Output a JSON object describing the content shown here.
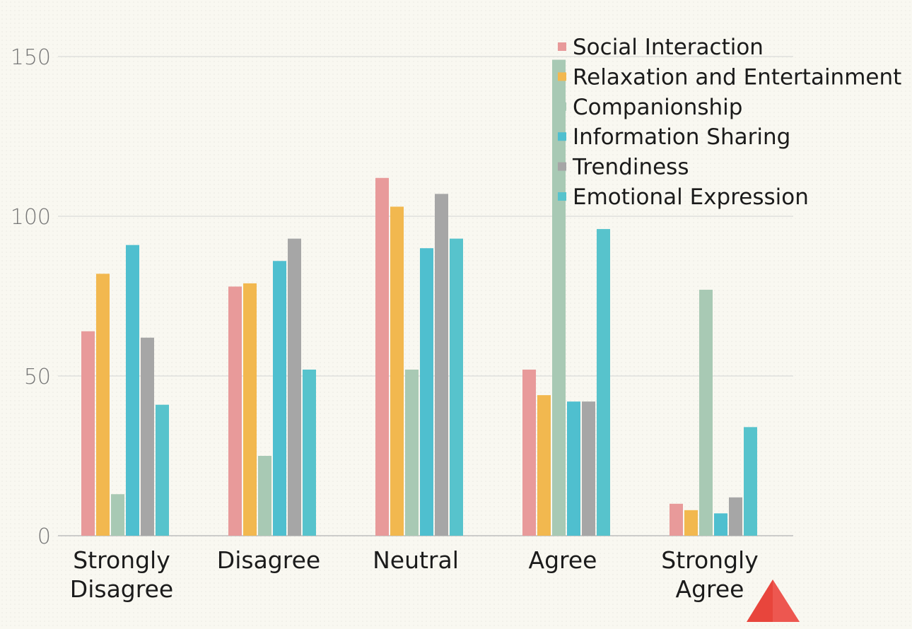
{
  "chart_data": {
    "type": "bar",
    "categories": [
      "Strongly Disagree",
      "Disagree",
      "Neutral",
      "Agree",
      "Strongly Agree"
    ],
    "category_lines": [
      [
        "Strongly",
        "Disagree"
      ],
      [
        "Disagree"
      ],
      [
        "Neutral"
      ],
      [
        "Agree"
      ],
      [
        "Strongly",
        "Agree"
      ]
    ],
    "series": [
      {
        "name": "Social Interaction",
        "color": "#e89a9a",
        "values": [
          64,
          78,
          112,
          52,
          10
        ]
      },
      {
        "name": "Relaxation and Entertainment",
        "color": "#f2b84f",
        "values": [
          82,
          79,
          103,
          44,
          8
        ]
      },
      {
        "name": "Companionship",
        "color": "#a8c9b4",
        "values": [
          13,
          25,
          52,
          149,
          77
        ]
      },
      {
        "name": "Information Sharing",
        "color": "#4fbfcf",
        "values": [
          91,
          86,
          90,
          42,
          7
        ]
      },
      {
        "name": "Trendiness",
        "color": "#a6a6a6",
        "values": [
          62,
          93,
          107,
          42,
          12
        ]
      },
      {
        "name": "Emotional Expression",
        "color": "#57c3cc",
        "values": [
          41,
          52,
          93,
          96,
          34
        ]
      }
    ],
    "yticks": [
      "0",
      "50",
      "100",
      "150"
    ],
    "ylim": [
      0,
      150
    ],
    "grid": true,
    "legend_position": "top-right"
  },
  "decoration": {
    "corner_triangle_color": "#e8453c"
  }
}
